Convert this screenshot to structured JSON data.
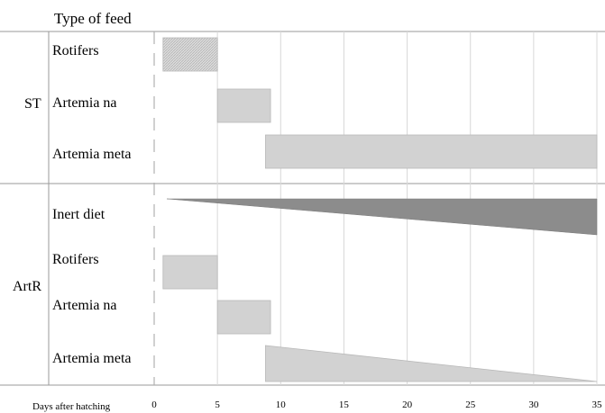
{
  "chart_data": {
    "type": "bar",
    "title": "Type of feed",
    "xlabel": "Days after hatching",
    "x_ticks": [
      0,
      5,
      10,
      15,
      20,
      25,
      30,
      35
    ],
    "xlim": [
      0,
      35
    ],
    "grid": true,
    "groups": [
      {
        "label": "ST",
        "rows": [
          {
            "feed": "Rotifers",
            "start": 0.7,
            "end": 5,
            "shape": "bar",
            "fill": "hatched"
          },
          {
            "feed": "Artemia na",
            "start": 5,
            "end": 9.2,
            "shape": "bar",
            "fill": "#d2d2d2"
          },
          {
            "feed": "Artemia meta",
            "start": 8.8,
            "end": 35,
            "shape": "bar",
            "fill": "#d2d2d2"
          }
        ]
      },
      {
        "label": "ArtR",
        "rows": [
          {
            "feed": "Inert diet",
            "start": 1,
            "end": 35,
            "shape": "increasing-wedge",
            "fill": "#8c8c8c"
          },
          {
            "feed": "Rotifers",
            "start": 0.7,
            "end": 5,
            "shape": "bar",
            "fill": "#d2d2d2"
          },
          {
            "feed": "Artemia na",
            "start": 5,
            "end": 9.2,
            "shape": "bar",
            "fill": "#d2d2d2"
          },
          {
            "feed": "Artemia meta",
            "start": 8.8,
            "end": 35,
            "shape": "decreasing-wedge",
            "fill": "#d2d2d2"
          }
        ]
      }
    ]
  }
}
